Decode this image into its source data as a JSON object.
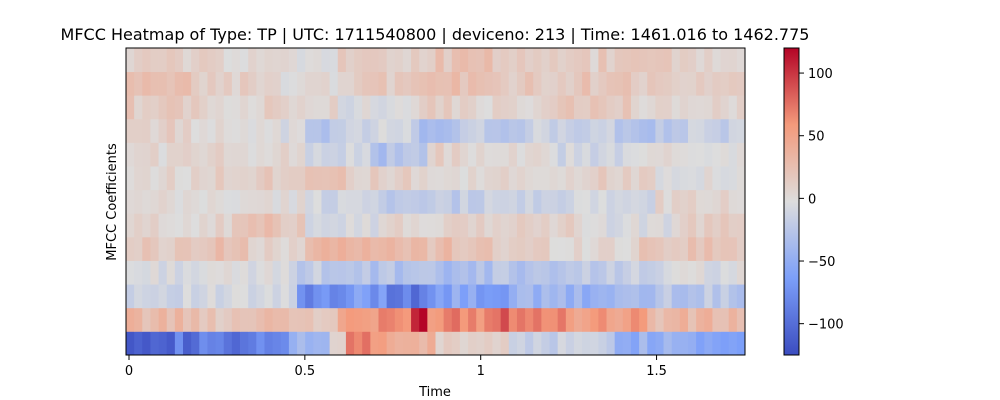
{
  "chart_data": {
    "type": "heatmap",
    "title": "MFCC Heatmap of Type: TP | UTC: 1711540800 | deviceno: 213 | Time: 1461.016 to 1462.775",
    "xlabel": "Time",
    "ylabel": "MFCC Coefficients",
    "xlim": [
      0,
      1.76
    ],
    "x_ticks": [
      0,
      0.5,
      1,
      1.5
    ],
    "x_tick_labels": [
      "0",
      "0.5",
      "1",
      "1.5"
    ],
    "n_coefficients": 13,
    "n_frames": 76,
    "colormap": "coolwarm",
    "colorbar": {
      "vmin": -125,
      "vmax": 120,
      "ticks": [
        100,
        50,
        0,
        -50,
        -100
      ],
      "tick_labels": [
        "100",
        "50",
        "0",
        "−50",
        "−100"
      ]
    },
    "rows_bottom_to_top": [
      {
        "coefficient": 0,
        "segments": [
          [
            0,
            0.46,
            -95
          ],
          [
            0.46,
            0.59,
            -40
          ],
          [
            0.59,
            0.62,
            10
          ],
          [
            0.62,
            0.75,
            60
          ],
          [
            0.75,
            0.88,
            35
          ],
          [
            0.88,
            1.1,
            10
          ],
          [
            1.1,
            1.38,
            -15
          ],
          [
            1.38,
            1.62,
            -45
          ],
          [
            1.62,
            1.76,
            -55
          ]
        ]
      },
      {
        "coefficient": 1,
        "segments": [
          [
            0,
            0.18,
            30
          ],
          [
            0.18,
            0.34,
            20
          ],
          [
            0.34,
            0.48,
            30
          ],
          [
            0.48,
            0.6,
            15
          ],
          [
            0.6,
            0.73,
            55
          ],
          [
            0.73,
            0.8,
            60
          ],
          [
            0.8,
            0.86,
            110
          ],
          [
            0.86,
            1.05,
            70
          ],
          [
            1.05,
            1.18,
            85
          ],
          [
            1.18,
            1.35,
            60
          ],
          [
            1.35,
            1.48,
            55
          ],
          [
            1.48,
            1.76,
            30
          ]
        ]
      },
      {
        "coefficient": 2,
        "segments": [
          [
            0,
            0.48,
            -10
          ],
          [
            0.48,
            0.62,
            -85
          ],
          [
            0.62,
            0.75,
            -65
          ],
          [
            0.75,
            0.86,
            -85
          ],
          [
            0.86,
            1.1,
            -60
          ],
          [
            1.1,
            1.38,
            -45
          ],
          [
            1.38,
            1.52,
            -35
          ],
          [
            1.52,
            1.76,
            -25
          ]
        ]
      },
      {
        "coefficient": 3,
        "segments": [
          [
            0,
            0.48,
            -5
          ],
          [
            0.48,
            0.62,
            -20
          ],
          [
            0.62,
            0.8,
            -30
          ],
          [
            0.8,
            1.05,
            -35
          ],
          [
            1.05,
            1.35,
            -25
          ],
          [
            1.35,
            1.55,
            -15
          ],
          [
            1.55,
            1.76,
            -5
          ]
        ]
      },
      {
        "coefficient": 4,
        "segments": [
          [
            0,
            0.18,
            15
          ],
          [
            0.18,
            0.35,
            25
          ],
          [
            0.35,
            0.5,
            5
          ],
          [
            0.5,
            0.6,
            40
          ],
          [
            0.6,
            0.8,
            30
          ],
          [
            0.8,
            1.05,
            25
          ],
          [
            1.05,
            1.2,
            10
          ],
          [
            1.2,
            1.45,
            5
          ],
          [
            1.45,
            1.76,
            20
          ]
        ]
      },
      {
        "coefficient": 5,
        "segments": [
          [
            0,
            0.3,
            5
          ],
          [
            0.3,
            0.5,
            20
          ],
          [
            0.5,
            0.72,
            -5
          ],
          [
            0.72,
            1.0,
            5
          ],
          [
            1.0,
            1.3,
            10
          ],
          [
            1.3,
            1.55,
            -5
          ],
          [
            1.55,
            1.76,
            10
          ]
        ]
      },
      {
        "coefficient": 6,
        "segments": [
          [
            0,
            0.5,
            0
          ],
          [
            0.5,
            0.75,
            -10
          ],
          [
            0.75,
            0.95,
            -25
          ],
          [
            0.95,
            1.2,
            -15
          ],
          [
            1.2,
            1.5,
            -10
          ],
          [
            1.5,
            1.76,
            5
          ]
        ]
      },
      {
        "coefficient": 7,
        "segments": [
          [
            0,
            0.25,
            5
          ],
          [
            0.25,
            0.5,
            15
          ],
          [
            0.5,
            0.62,
            30
          ],
          [
            0.62,
            0.82,
            10
          ],
          [
            0.82,
            1.0,
            0
          ],
          [
            1.0,
            1.25,
            5
          ],
          [
            1.25,
            1.5,
            10
          ],
          [
            1.5,
            1.76,
            0
          ]
        ]
      },
      {
        "coefficient": 8,
        "segments": [
          [
            0,
            0.5,
            5
          ],
          [
            0.5,
            0.7,
            -10
          ],
          [
            0.7,
            0.85,
            -30
          ],
          [
            0.85,
            0.95,
            10
          ],
          [
            0.95,
            1.2,
            0
          ],
          [
            1.2,
            1.45,
            -10
          ],
          [
            1.45,
            1.76,
            0
          ]
        ]
      },
      {
        "coefficient": 9,
        "segments": [
          [
            0,
            0.15,
            10
          ],
          [
            0.15,
            0.35,
            5
          ],
          [
            0.35,
            0.5,
            -5
          ],
          [
            0.5,
            0.62,
            -25
          ],
          [
            0.62,
            0.8,
            -10
          ],
          [
            0.8,
            0.95,
            -30
          ],
          [
            0.95,
            1.15,
            -20
          ],
          [
            1.15,
            1.4,
            -15
          ],
          [
            1.4,
            1.6,
            -30
          ],
          [
            1.6,
            1.76,
            -15
          ]
        ]
      },
      {
        "coefficient": 10,
        "segments": [
          [
            0,
            0.2,
            15
          ],
          [
            0.2,
            0.4,
            5
          ],
          [
            0.4,
            0.6,
            10
          ],
          [
            0.6,
            0.8,
            -5
          ],
          [
            0.8,
            0.95,
            10
          ],
          [
            0.95,
            1.2,
            5
          ],
          [
            1.2,
            1.45,
            15
          ],
          [
            1.45,
            1.76,
            5
          ]
        ]
      },
      {
        "coefficient": 11,
        "segments": [
          [
            0,
            0.2,
            20
          ],
          [
            0.2,
            0.45,
            10
          ],
          [
            0.45,
            0.6,
            0
          ],
          [
            0.6,
            0.8,
            15
          ],
          [
            0.8,
            1.0,
            25
          ],
          [
            1.0,
            1.25,
            15
          ],
          [
            1.25,
            1.45,
            20
          ],
          [
            1.45,
            1.76,
            10
          ]
        ]
      },
      {
        "coefficient": 12,
        "segments": [
          [
            0,
            0.25,
            10
          ],
          [
            0.25,
            0.45,
            5
          ],
          [
            0.45,
            0.6,
            0
          ],
          [
            0.6,
            0.85,
            10
          ],
          [
            0.85,
            1.1,
            20
          ],
          [
            1.1,
            1.35,
            10
          ],
          [
            1.35,
            1.6,
            15
          ],
          [
            1.6,
            1.76,
            5
          ]
        ]
      }
    ]
  }
}
